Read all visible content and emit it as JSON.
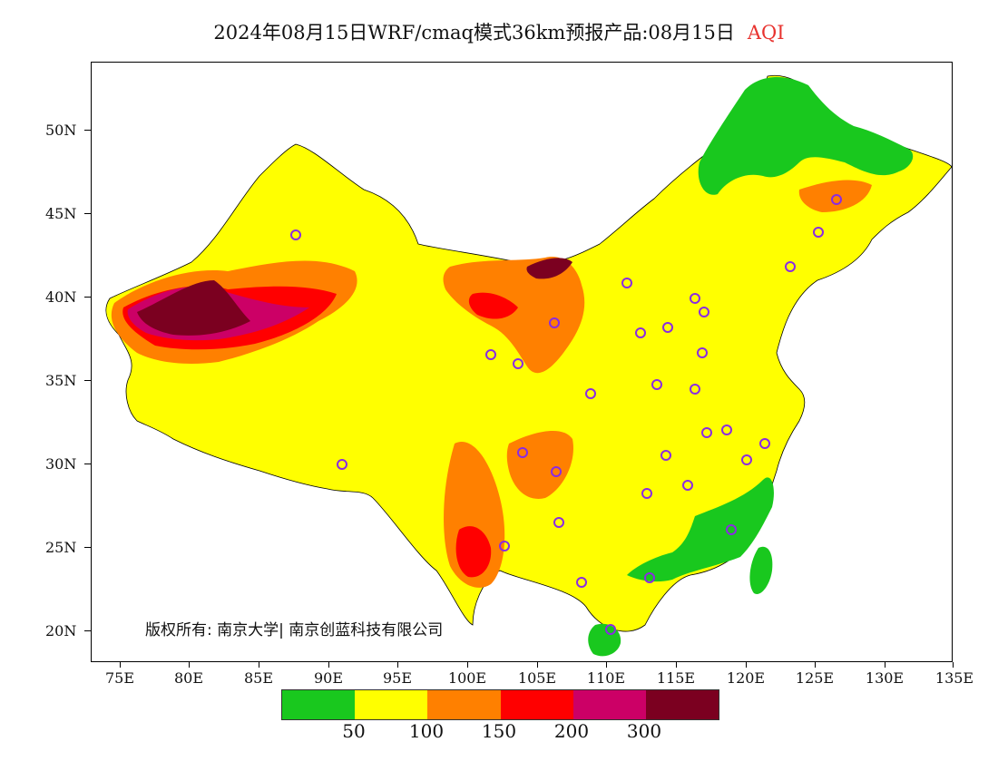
{
  "title": {
    "main": "2024年08月15日WRF/cmaq模式36km预报产品:08月15日",
    "variable": "AQI"
  },
  "map": {
    "lat_labels": [
      "50N",
      "45N",
      "40N",
      "35N",
      "30N",
      "25N",
      "20N"
    ],
    "lon_labels": [
      "75E",
      "80E",
      "85E",
      "90E",
      "95E",
      "100E",
      "105E",
      "110E",
      "115E",
      "120E",
      "125E",
      "130E",
      "135E"
    ],
    "copyright": "版权所有: 南京大学| 南京创蓝科技有限公司"
  },
  "legend": {
    "colors": [
      "#19c81e",
      "#ffff00",
      "#ff8000",
      "#ff0000",
      "#cc0066",
      "#7b0020"
    ],
    "labels": [
      "50",
      "100",
      "150",
      "200",
      "300"
    ]
  }
}
